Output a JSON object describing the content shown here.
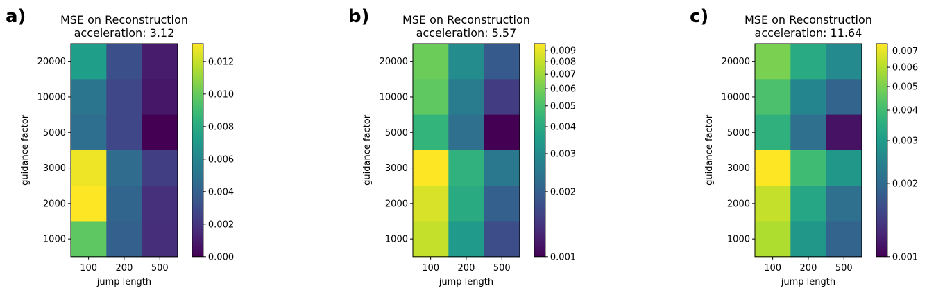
{
  "chart_data": [
    {
      "type": "heatmap",
      "panel_label": "a)",
      "title": "MSE on Reconstruction",
      "subtitle": "acceleration: 3.12",
      "xlabel": "jump length",
      "ylabel": "guidance factor",
      "x": [
        "100",
        "200",
        "500"
      ],
      "y": [
        "20000",
        "10000",
        "5000",
        "3000",
        "2000",
        "1000"
      ],
      "colormap": "viridis",
      "color_scale": "linear",
      "clim": [
        0,
        0.0131
      ],
      "colorbar_ticks": [
        0,
        0.002,
        0.004,
        0.006,
        0.008,
        0.01,
        0.012
      ],
      "colorbar_tick_labels": [
        "0.000",
        "0.002",
        "0.004",
        "0.006",
        "0.008",
        "0.010",
        "0.012"
      ],
      "values": [
        [
          0.0073,
          0.0032,
          0.001
        ],
        [
          0.0051,
          0.0028,
          0.0008
        ],
        [
          0.0047,
          0.0028,
          0.0
        ],
        [
          0.0128,
          0.0046,
          0.0024
        ],
        [
          0.0131,
          0.0042,
          0.0018
        ],
        [
          0.0098,
          0.004,
          0.0017
        ]
      ]
    },
    {
      "type": "heatmap",
      "panel_label": "b)",
      "title": "MSE on Reconstruction",
      "subtitle": "acceleration: 5.57",
      "xlabel": "jump length",
      "ylabel": "guidance factor",
      "x": [
        "100",
        "200",
        "500"
      ],
      "y": [
        "20000",
        "10000",
        "5000",
        "3000",
        "2000",
        "1000"
      ],
      "colormap": "viridis",
      "color_scale": "log",
      "clim": [
        0.001,
        0.0097
      ],
      "colorbar_ticks": [
        0.001,
        0.002,
        0.003,
        0.004,
        0.005,
        0.006,
        0.007,
        0.008,
        0.009
      ],
      "colorbar_tick_labels": [
        "0.001",
        "0.002",
        "0.003",
        "0.004",
        "0.005",
        "0.006",
        "0.007",
        "0.008",
        "0.009"
      ],
      "values": [
        [
          0.0058,
          0.003,
          0.0019
        ],
        [
          0.0055,
          0.0026,
          0.0015
        ],
        [
          0.0044,
          0.0023,
          0.001
        ],
        [
          0.0097,
          0.0043,
          0.0025
        ],
        [
          0.0085,
          0.004,
          0.002
        ],
        [
          0.008,
          0.0034,
          0.0017
        ]
      ]
    },
    {
      "type": "heatmap",
      "panel_label": "c)",
      "title": "MSE on Reconstruction",
      "subtitle": "acceleration: 11.64",
      "xlabel": "jump length",
      "ylabel": "guidance factor",
      "x": [
        "100",
        "200",
        "500"
      ],
      "y": [
        "20000",
        "10000",
        "5000",
        "3000",
        "2000",
        "1000"
      ],
      "colormap": "viridis",
      "color_scale": "log",
      "clim": [
        0.001,
        0.0075
      ],
      "colorbar_ticks": [
        0.001,
        0.002,
        0.003,
        0.004,
        0.005,
        0.006,
        0.007
      ],
      "colorbar_tick_labels": [
        "0.001",
        "0.002",
        "0.003",
        "0.004",
        "0.005",
        "0.006",
        "0.007"
      ],
      "values": [
        [
          0.005,
          0.0034,
          0.0026
        ],
        [
          0.0042,
          0.0025,
          0.0019
        ],
        [
          0.0036,
          0.0021,
          0.0011
        ],
        [
          0.0075,
          0.004,
          0.0029
        ],
        [
          0.0063,
          0.0033,
          0.0021
        ],
        [
          0.0059,
          0.0029,
          0.0019
        ]
      ]
    }
  ]
}
